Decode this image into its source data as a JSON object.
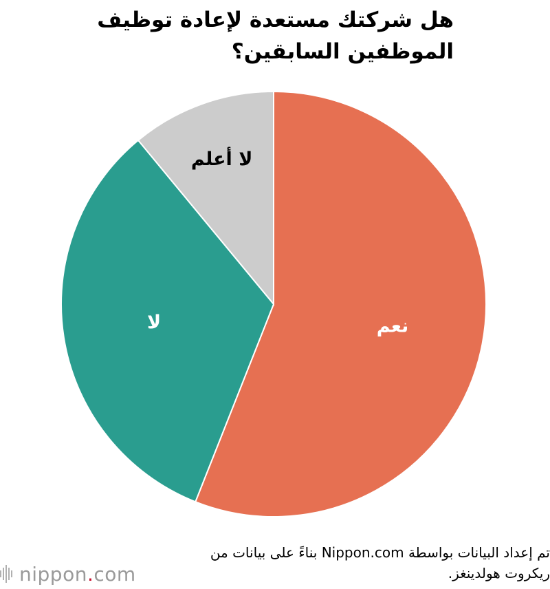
{
  "title": "هل شركتك مستعدة لإعادة توظيف الموظفين السابقين؟",
  "chart_data": {
    "type": "pie",
    "title": "هل شركتك مستعدة لإعادة توظيف الموظفين السابقين؟",
    "start": "top",
    "direction": "clockwise",
    "slices": [
      {
        "label": "نعم",
        "value": 56,
        "color": "#e67052",
        "label_color": "#ffffff"
      },
      {
        "label": "لا",
        "value": 33,
        "color": "#2a9d8f",
        "label_color": "#ffffff"
      },
      {
        "label": "لا أعلم",
        "value": 11,
        "color": "#cccccc",
        "label_color": "#000000"
      }
    ]
  },
  "footer": {
    "source_note": "تم إعداد البيانات بواسطة Nippon.com بناءً على بيانات من ريكروت هولدينغز."
  },
  "logo": {
    "brand_prefix": "nippon",
    "brand_dot": ".",
    "brand_suffix": "com"
  }
}
